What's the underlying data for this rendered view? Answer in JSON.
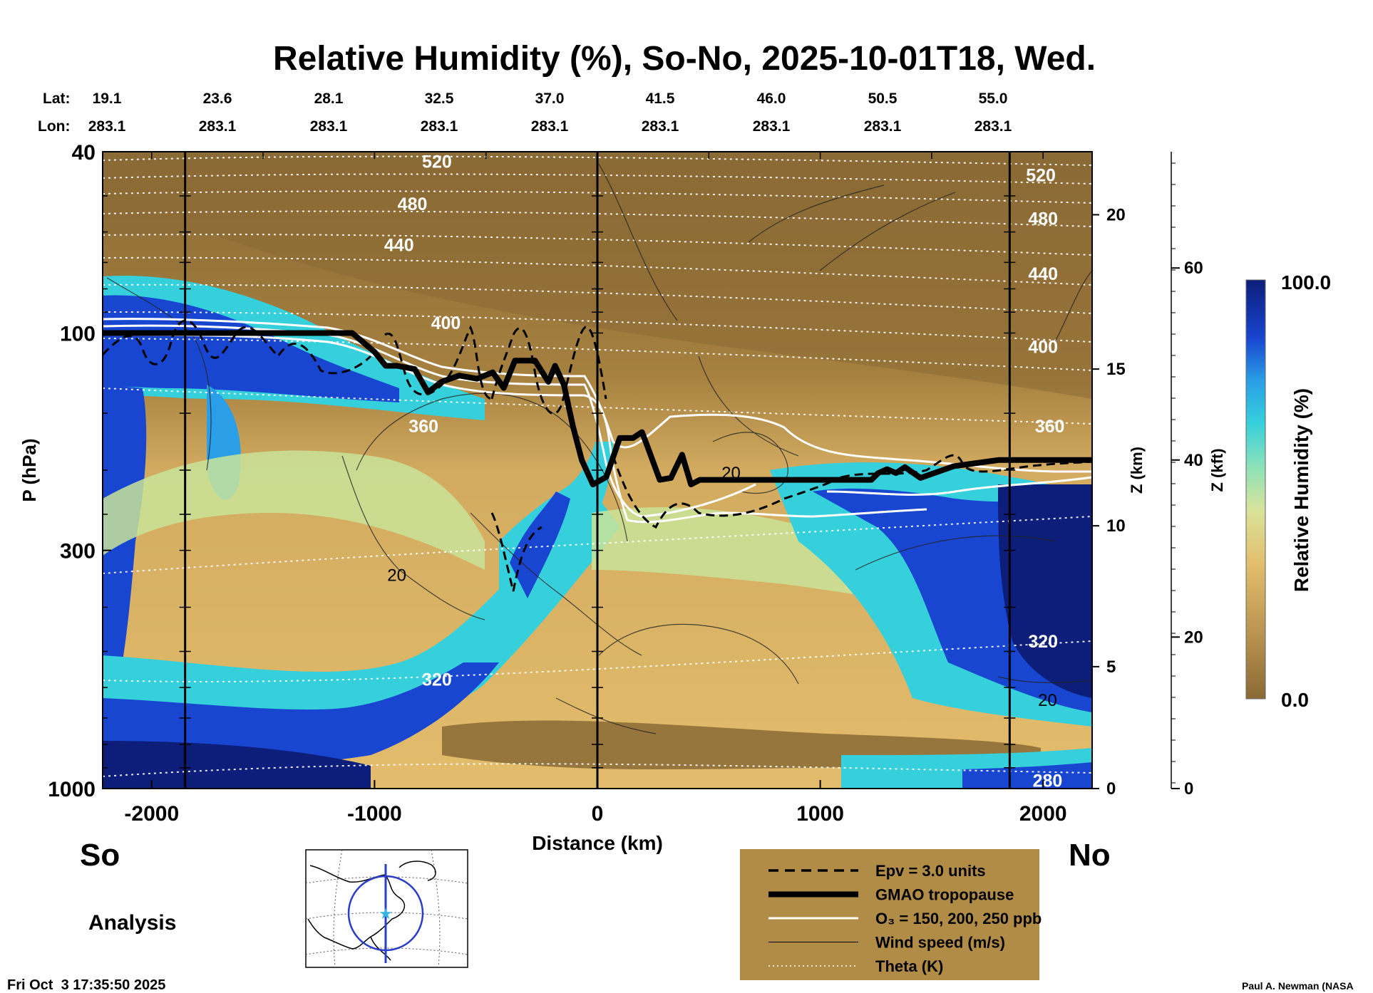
{
  "title": "Relative Humidity (%), So-No, 2025-10-01T18, Wed.",
  "header": {
    "lat_label": "Lat:",
    "lon_label": "Lon:",
    "lats": [
      "19.1",
      "23.6",
      "28.1",
      "32.5",
      "37.0",
      "41.5",
      "46.0",
      "50.5",
      "55.0"
    ],
    "lons": [
      "283.1",
      "283.1",
      "283.1",
      "283.1",
      "283.1",
      "283.1",
      "283.1",
      "283.1",
      "283.1"
    ]
  },
  "labels": {
    "south": "So",
    "north": "No",
    "mode": "Analysis",
    "timestamp": "Fri Oct  3 17:35:50 2025",
    "credit": "Paul A. Newman (NASA"
  },
  "legend": {
    "items": [
      {
        "style": "dashed",
        "label": "Epv = 3.0 units"
      },
      {
        "style": "thick",
        "label": "GMAO tropopause"
      },
      {
        "style": "white",
        "label": "O₃ = 150, 200, 250 ppb"
      },
      {
        "style": "thin",
        "label": "Wind speed (m/s)"
      },
      {
        "style": "dotted",
        "label": "Theta (K)"
      }
    ]
  },
  "colors": {
    "dry": "#8a6a35",
    "mid": "#e3bd6c",
    "green": "#c9e49a",
    "cyan": "#35d0dc",
    "blue": "#1846d0",
    "wet": "#0c1e7a",
    "legend_bg": "#b08c47"
  },
  "chart_data": {
    "type": "heatmap",
    "title": "Relative Humidity (%), So-No, 2025-10-01T18, Wed.",
    "xlabel": "Distance (km)",
    "ylabel": "P (hPa)",
    "ylabel_right": "Z (km)",
    "ylabel_far_right": "Z (kft)",
    "colorbar_label": "Relative Humidity (%)",
    "colorbar_range": [
      0.0,
      100.0
    ],
    "colorbar_ticks": [
      "100.0",
      "0.0"
    ],
    "xlim": [
      -2220,
      2220
    ],
    "ylim": [
      1000,
      40
    ],
    "y_log_scale": true,
    "x_ticks": [
      -2000,
      -1000,
      0,
      1000,
      2000
    ],
    "y_ticks": [
      40,
      100,
      300,
      1000
    ],
    "z_km_ticks": [
      {
        "z": 0,
        "p": 1000
      },
      {
        "z": 5,
        "p": 540
      },
      {
        "z": 10,
        "p": 265
      },
      {
        "z": 15,
        "p": 120
      },
      {
        "z": 20,
        "p": 55
      }
    ],
    "z_kft_ticks": [
      {
        "z": 0,
        "p": 1000
      },
      {
        "z": 20,
        "p": 465
      },
      {
        "z": 40,
        "p": 190
      },
      {
        "z": 60,
        "p": 72
      }
    ],
    "vertical_lines_km": [
      -1850,
      0,
      1850
    ],
    "theta_labels": [
      {
        "text": "520",
        "x": -720,
        "p": 42
      },
      {
        "text": "480",
        "x": -830,
        "p": 52
      },
      {
        "text": "440",
        "x": -890,
        "p": 64
      },
      {
        "text": "400",
        "x": -680,
        "p": 95
      },
      {
        "text": "360",
        "x": -780,
        "p": 160
      },
      {
        "text": "320",
        "x": -720,
        "p": 575
      },
      {
        "text": "520",
        "x": 1990,
        "p": 45
      },
      {
        "text": "480",
        "x": 2000,
        "p": 56
      },
      {
        "text": "440",
        "x": 2000,
        "p": 74
      },
      {
        "text": "400",
        "x": 2000,
        "p": 107
      },
      {
        "text": "360",
        "x": 2030,
        "p": 160
      },
      {
        "text": "320",
        "x": 2000,
        "p": 475
      },
      {
        "text": "280",
        "x": 2020,
        "p": 960
      }
    ],
    "wind_labels": [
      {
        "text": "20",
        "x": -900,
        "p": 340
      },
      {
        "text": "20",
        "x": 600,
        "p": 203
      },
      {
        "text": "20",
        "x": 2020,
        "p": 640
      }
    ],
    "tropopause": {
      "x": [
        -2220,
        -1100,
        -1000,
        -950,
        -900,
        -820,
        -760,
        -700,
        -620,
        -540,
        -470,
        -420,
        -370,
        -280,
        -220,
        -190,
        -150,
        -110,
        -70,
        -20,
        40,
        100,
        160,
        200,
        220,
        280,
        330,
        380,
        420,
        460,
        600,
        900,
        1230,
        1260,
        1300,
        1340,
        1380,
        1450,
        1600,
        1700,
        1800,
        2000,
        2220
      ],
      "p": [
        100,
        100,
        110,
        118,
        118,
        120,
        135,
        128,
        124,
        126,
        122,
        132,
        115,
        115,
        128,
        118,
        130,
        160,
        190,
        215,
        207,
        170,
        170,
        165,
        175,
        210,
        208,
        185,
        215,
        210,
        210,
        210,
        210,
        203,
        199,
        203,
        197,
        208,
        196,
        193,
        190,
        190,
        190
      ]
    }
  }
}
